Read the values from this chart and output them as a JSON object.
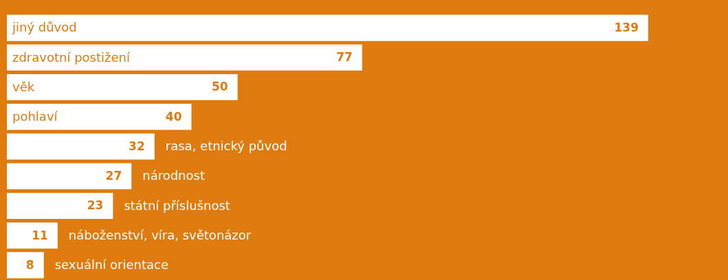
{
  "chart_data": {
    "type": "bar",
    "orientation": "horizontal",
    "categories": [
      "jiný důvod",
      "zdravotní postižení",
      "věk",
      "pohlaví",
      "rasa, etnický původ",
      "národnost",
      "státní příslušnost",
      "náboženství, víra, světonázor",
      "sexuální orientace"
    ],
    "values": [
      139,
      77,
      50,
      40,
      32,
      27,
      23,
      11,
      8
    ],
    "color": "#ffffff",
    "data_labels": true,
    "legend": false,
    "tick_labels": false
  }
}
